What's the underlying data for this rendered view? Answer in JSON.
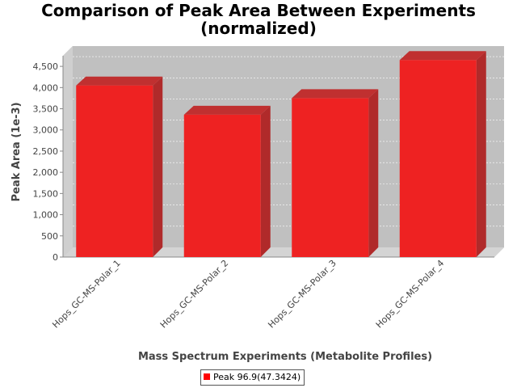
{
  "chart_data": {
    "type": "bar",
    "title_line1": "Comparison of Peak Area Between Experiments",
    "title_line2": "(normalized)",
    "xlabel": "Mass Spectrum Experiments (Metabolite Profiles)",
    "ylabel": "Peak Area (1e-3)",
    "categories": [
      "Hops_GC-MS-Polar_1",
      "Hops_GC-MS-Polar_2",
      "Hops_GC-MS-Polar_3",
      "Hops_GC-MS-Polar_4"
    ],
    "series": [
      {
        "name": "Peak 96.9(47.3424)",
        "values": [
          4050,
          3360,
          3750,
          4650
        ],
        "color": "#ee2222"
      }
    ],
    "ylim": [
      0,
      4750
    ],
    "yticks": [
      "0",
      "500",
      "1,000",
      "1,500",
      "2,000",
      "2,500",
      "3,000",
      "3,500",
      "4,000",
      "4,500"
    ],
    "ytick_values": [
      0,
      500,
      1000,
      1500,
      2000,
      2500,
      3000,
      3500,
      4000,
      4500
    ],
    "grid": true,
    "legend_position": "bottom-center",
    "plot_background": "#c0c0c0"
  }
}
